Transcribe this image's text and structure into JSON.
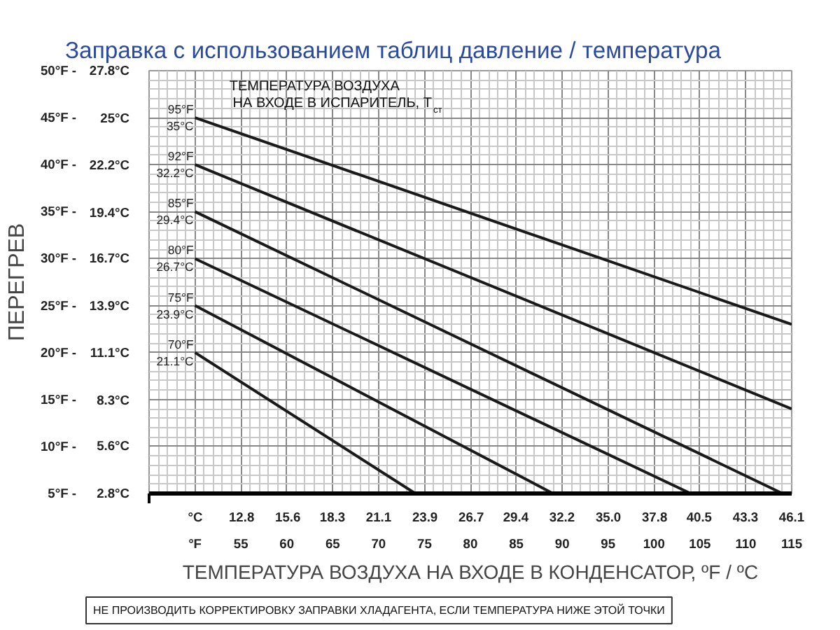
{
  "chart_data": {
    "type": "line",
    "title": "Заправка с использованием таблиц давление / температура",
    "xlabel": "ТЕМПЕРАТУРА ВОЗДУХА НА ВХОДЕ В КОНДЕНСАТОР, ºF / ºC",
    "ylabel": "ПЕРЕГРЕВ",
    "legend_title": "ТЕМПЕРАТУРА ВОЗДУХА НА ВХОДЕ В ИСПАРИТЕЛЬ, T$_{ст}$",
    "annotations": [
      "НЕ ПРОИЗВОДИТЬ КОРРЕКТИРОВКУ ЗАПРАВКИ ХЛАДАГЕНТА, ЕСЛИ ТЕМПЕРАТУРА НИЖЕ ЭТОЙ ТОЧКИ"
    ],
    "series": [
      {
        "name": "95°F\n35°C",
        "color": "#1a1a1a",
        "x": [
          50,
          115
        ],
        "values": [
          45,
          23
        ]
      },
      {
        "name": "92°F\n32.2°C",
        "color": "#1a1a1a",
        "x": [
          50,
          115
        ],
        "values": [
          40,
          14
        ]
      },
      {
        "name": "85°F\n29.4°C",
        "color": "#1a1a1a",
        "x": [
          50,
          114
        ],
        "values": [
          35,
          5
        ]
      },
      {
        "name": "80°F\n26.7°C",
        "color": "#1a1a1a",
        "x": [
          50,
          104
        ],
        "values": [
          30,
          5
        ]
      },
      {
        "name": "75°F\n23.9°C",
        "color": "#1a1a1a",
        "x": [
          50,
          89
        ],
        "values": [
          25,
          5
        ]
      },
      {
        "name": "70°F\n21.1°C",
        "color": "#1a1a1a",
        "x": [
          50,
          74
        ],
        "values": [
          20,
          5
        ]
      }
    ],
    "xlim": [
      45,
      115
    ],
    "ylim": [
      5,
      50
    ],
    "xticks": [
      {
        "value": 50,
        "label": "°F"
      },
      55,
      60,
      65,
      70,
      75,
      80,
      85,
      90,
      95,
      100,
      105,
      110,
      115
    ],
    "x2lim": [
      7.2,
      46.1
    ],
    "x2ticks": [
      {
        "value": 10,
        "label": "°C"
      },
      12.8,
      15.6,
      18.3,
      21.1,
      23.9,
      26.7,
      29.4,
      32.2,
      {
        "value": 35.0,
        "label": "35.0"
      },
      37.8,
      40.5,
      43.3,
      46.1
    ],
    "yticks": [
      {
        "value": 5,
        "label": "5°F -"
      },
      {
        "value": 10,
        "label": "10°F -"
      },
      {
        "value": 15,
        "label": "15°F -"
      },
      {
        "value": 20,
        "label": "20°F -"
      },
      {
        "value": 25,
        "label": "25°F -"
      },
      {
        "value": 30,
        "label": "30°F -"
      },
      {
        "value": 35,
        "label": "35°F -"
      },
      {
        "value": 40,
        "label": "40°F -"
      },
      {
        "value": 45,
        "label": "45°F -"
      },
      {
        "value": 50,
        "label": "50°F -"
      }
    ],
    "y2lim": [
      2.8,
      27.8
    ],
    "y2ticks": [
      {
        "value": 2.8,
        "label": "2.8°C"
      },
      {
        "value": 5.6,
        "label": "5.6°C"
      },
      {
        "value": 8.3,
        "label": "8.3°C"
      },
      {
        "value": 11.1,
        "label": "11.1°C"
      },
      {
        "value": 13.9,
        "label": "13.9°C"
      },
      {
        "value": 16.7,
        "label": "16.7°C"
      },
      {
        "value": 19.4,
        "label": "19.4°C"
      },
      {
        "value": 22.2,
        "label": "22.2°C"
      },
      {
        "value": 25,
        "label": "25°C"
      },
      {
        "value": 27.8,
        "label": "27.8°C"
      }
    ],
    "grid": true,
    "legend": "top left",
    "marker": "none",
    "line_style": "solid"
  }
}
